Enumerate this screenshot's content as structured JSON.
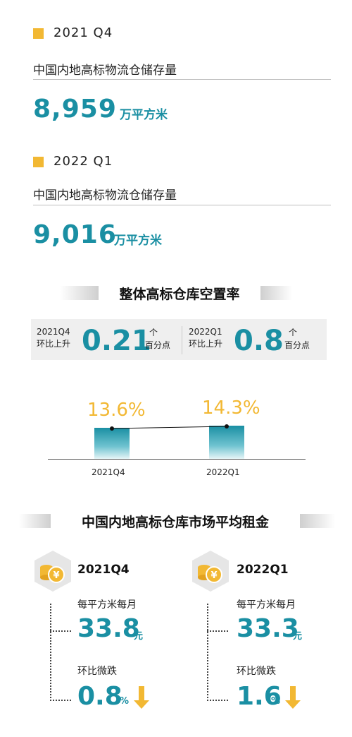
{
  "stock": [
    {
      "quarter": "2021 Q4",
      "label": "中国内地高标物流仓储存量",
      "value": "8,959",
      "unit": "万平方米"
    },
    {
      "quarter": "2022 Q1",
      "label": "中国内地高标物流仓储存量",
      "value": "9,016",
      "unit": "万平方米"
    }
  ],
  "vacancy": {
    "title": "整体高标仓库空置率",
    "changes": [
      {
        "period": "2021Q4",
        "desc": "环比上升",
        "value": "0.21",
        "unit_top": "个",
        "unit_bottom": "百分点"
      },
      {
        "period": "2022Q1",
        "desc": "环比上升",
        "value": "0.8",
        "unit_top": "个",
        "unit_bottom": "百分点"
      }
    ],
    "bars": [
      {
        "category": "2021Q4",
        "label": "13.6%"
      },
      {
        "category": "2022Q1",
        "label": "14.3%"
      }
    ]
  },
  "chart_data": {
    "type": "bar",
    "categories": [
      "2021Q4",
      "2022Q1"
    ],
    "values": [
      13.6,
      14.3
    ],
    "title": "整体高标仓库空置率",
    "xlabel": "",
    "ylabel": ""
  },
  "rent": {
    "title": "中国内地高标仓库市场平均租金",
    "items": [
      {
        "quarter": "2021Q4",
        "label1": "每平方米每月",
        "value": "33.8",
        "unit": "元",
        "label2": "环比微跌",
        "change": "0.8",
        "change_unit": "%"
      },
      {
        "quarter": "2022Q1",
        "label1": "每平方米每月",
        "value": "33.3",
        "unit": "元",
        "label2": "环比微跌",
        "change": "1.6",
        "change_unit": "%"
      }
    ]
  },
  "colors": {
    "accent": "#1a8fa3",
    "gold": "#f2b833"
  },
  "icons": [
    "coin-stack-icon",
    "yen-coin-icon",
    "down-arrow-icon"
  ]
}
